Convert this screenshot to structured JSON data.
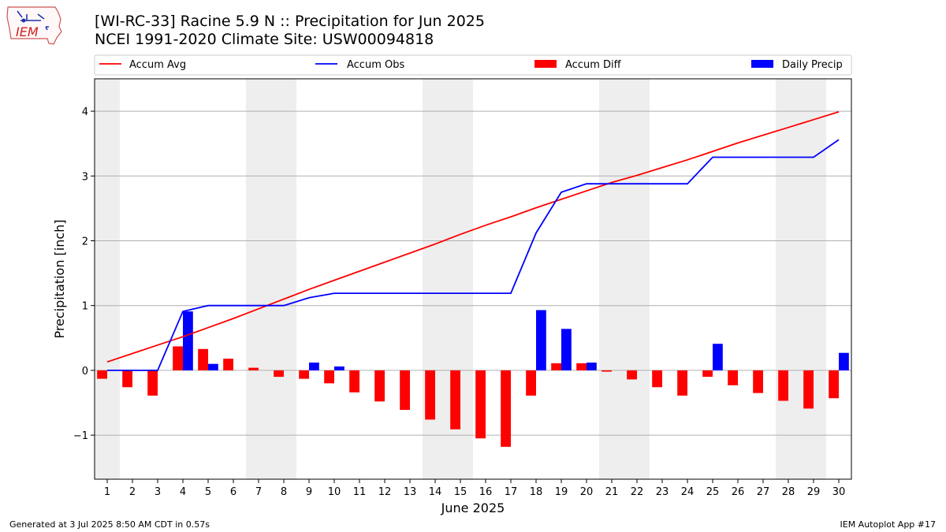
{
  "logo": {
    "text": "IEM"
  },
  "header": {
    "title_line1": "[WI-RC-33] Racine 5.9 N :: Precipitation for Jun 2025",
    "title_line2": "NCEI 1991-2020 Climate Site: USW00094818"
  },
  "footer": {
    "generated": "Generated at 3 Jul 2025 8:50 AM CDT in 0.57s",
    "app": "IEM Autoplot App #17"
  },
  "colors": {
    "accum_avg": "#ff0000",
    "accum_obs": "#0000ff",
    "accum_diff": "#ff0000",
    "daily_precip": "#0000ff",
    "weekend_band": "#eeeeee",
    "grid": "#b0b0b0"
  },
  "chart_data": {
    "type": "bar",
    "xlabel": "June 2025",
    "ylabel": "Precipitation [inch]",
    "ylim": [
      -1.68,
      4.5
    ],
    "yticks": [
      -1,
      0,
      1,
      2,
      3,
      4
    ],
    "ytick_labels": [
      "−1",
      "0",
      "1",
      "2",
      "3",
      "4"
    ],
    "grid": "horizontal",
    "legend_placement": "top, above plot",
    "days": [
      1,
      2,
      3,
      4,
      5,
      6,
      7,
      8,
      9,
      10,
      11,
      12,
      13,
      14,
      15,
      16,
      17,
      18,
      19,
      20,
      21,
      22,
      23,
      24,
      25,
      26,
      27,
      28,
      29,
      30
    ],
    "weekend_days": [
      1,
      7,
      8,
      14,
      15,
      21,
      22,
      28,
      29
    ],
    "series": [
      {
        "name": "Accum Avg",
        "kind": "line",
        "values": [
          0.13,
          0.26,
          0.39,
          0.52,
          0.66,
          0.8,
          0.95,
          1.1,
          1.25,
          1.39,
          1.53,
          1.67,
          1.81,
          1.95,
          2.1,
          2.24,
          2.37,
          2.51,
          2.64,
          2.77,
          2.9,
          3.01,
          3.13,
          3.25,
          3.38,
          3.51,
          3.63,
          3.75,
          3.87,
          3.99
        ]
      },
      {
        "name": "Accum Obs",
        "kind": "line",
        "values": [
          0.0,
          0.0,
          0.0,
          0.91,
          1.0,
          1.0,
          1.0,
          1.0,
          1.12,
          1.19,
          1.19,
          1.19,
          1.19,
          1.19,
          1.19,
          1.19,
          1.19,
          2.12,
          2.75,
          2.88,
          2.88,
          2.88,
          2.88,
          2.88,
          3.29,
          3.29,
          3.29,
          3.29,
          3.29,
          3.56
        ]
      },
      {
        "name": "Accum Diff",
        "kind": "bar",
        "values": [
          -0.13,
          -0.26,
          -0.39,
          0.37,
          0.33,
          0.18,
          0.04,
          -0.1,
          -0.13,
          -0.2,
          -0.34,
          -0.48,
          -0.61,
          -0.76,
          -0.91,
          -1.05,
          -1.18,
          -0.39,
          0.11,
          0.11,
          -0.02,
          -0.14,
          -0.26,
          -0.39,
          -0.1,
          -0.23,
          -0.35,
          -0.47,
          -0.59,
          -0.43
        ]
      },
      {
        "name": "Daily Precip",
        "kind": "bar",
        "values": [
          0,
          0,
          0,
          0.91,
          0.1,
          0,
          0,
          0,
          0.12,
          0.06,
          0,
          0,
          0,
          0,
          0,
          0,
          0,
          0.93,
          0.64,
          0.12,
          0,
          0,
          0,
          0,
          0.41,
          0,
          0,
          0,
          0,
          0.27
        ]
      }
    ]
  }
}
